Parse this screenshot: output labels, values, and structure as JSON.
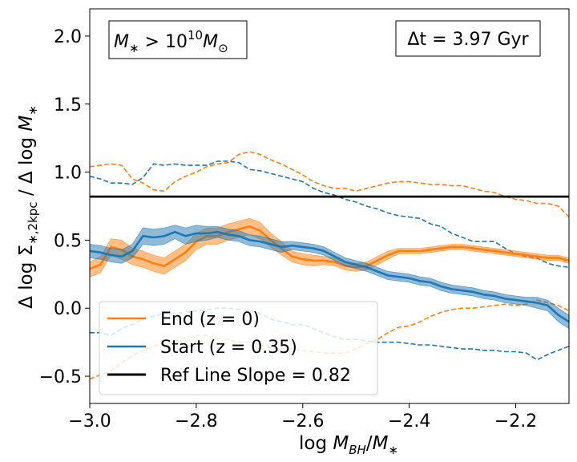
{
  "chart_data": {
    "type": "line",
    "xlabel": "log M_BH/M_*",
    "ylabel": "Δ log Σ_*,2kpc / Δ log M_*",
    "xlim": [
      -3.0,
      -2.1
    ],
    "ylim": [
      -0.7,
      2.2
    ],
    "xticks": [
      -3.0,
      -2.8,
      -2.6,
      -2.4,
      -2.2
    ],
    "xtick_labels": [
      "−3.0",
      "−2.8",
      "−2.6",
      "−2.4",
      "−2.2"
    ],
    "yticks": [
      -0.5,
      0.0,
      0.5,
      1.0,
      1.5,
      2.0
    ],
    "ytick_labels": [
      "−0.5",
      "0.0",
      "0.5",
      "1.0",
      "1.5",
      "2.0"
    ],
    "annotations": {
      "mass_cut": {
        "prefix": "M",
        "sub": "∗",
        "mid": " > 10",
        "exp": "10",
        "suffix": "M",
        "suffix_sub": "⊙"
      },
      "delta_t": "Δt = 3.97 Gyr"
    },
    "ref_line": {
      "name": "Ref Line Slope = 0.82",
      "value": 0.82,
      "color": "#000000"
    },
    "series": [
      {
        "name": "End (z = 0)",
        "color": "#ff7f0e",
        "x": [
          -3.0,
          -2.98,
          -2.96,
          -2.94,
          -2.92,
          -2.9,
          -2.88,
          -2.86,
          -2.84,
          -2.82,
          -2.8,
          -2.78,
          -2.76,
          -2.74,
          -2.72,
          -2.7,
          -2.68,
          -2.66,
          -2.64,
          -2.62,
          -2.6,
          -2.58,
          -2.56,
          -2.54,
          -2.52,
          -2.5,
          -2.48,
          -2.46,
          -2.44,
          -2.42,
          -2.4,
          -2.38,
          -2.36,
          -2.34,
          -2.32,
          -2.3,
          -2.28,
          -2.26,
          -2.24,
          -2.22,
          -2.2,
          -2.18,
          -2.16,
          -2.14,
          -2.12,
          -2.1
        ],
        "median": [
          0.29,
          0.32,
          0.45,
          0.43,
          0.38,
          0.36,
          0.33,
          0.31,
          0.36,
          0.41,
          0.49,
          0.53,
          0.53,
          0.56,
          0.58,
          0.6,
          0.57,
          0.5,
          0.44,
          0.38,
          0.36,
          0.35,
          0.35,
          0.34,
          0.31,
          0.3,
          0.31,
          0.35,
          0.39,
          0.42,
          0.42,
          0.42,
          0.43,
          0.44,
          0.45,
          0.45,
          0.44,
          0.43,
          0.42,
          0.41,
          0.4,
          0.39,
          0.38,
          0.37,
          0.37,
          0.35
        ],
        "upper": [
          0.34,
          0.38,
          0.51,
          0.5,
          0.44,
          0.42,
          0.39,
          0.37,
          0.42,
          0.47,
          0.55,
          0.59,
          0.59,
          0.62,
          0.64,
          0.66,
          0.63,
          0.55,
          0.49,
          0.42,
          0.4,
          0.39,
          0.38,
          0.37,
          0.34,
          0.33,
          0.34,
          0.38,
          0.42,
          0.44,
          0.44,
          0.44,
          0.45,
          0.46,
          0.47,
          0.47,
          0.46,
          0.45,
          0.44,
          0.43,
          0.42,
          0.41,
          0.4,
          0.39,
          0.39,
          0.37
        ],
        "lower": [
          0.23,
          0.26,
          0.39,
          0.36,
          0.32,
          0.3,
          0.27,
          0.25,
          0.3,
          0.35,
          0.43,
          0.47,
          0.47,
          0.5,
          0.52,
          0.54,
          0.51,
          0.45,
          0.39,
          0.34,
          0.32,
          0.31,
          0.32,
          0.31,
          0.28,
          0.27,
          0.28,
          0.32,
          0.36,
          0.4,
          0.4,
          0.4,
          0.41,
          0.42,
          0.43,
          0.43,
          0.42,
          0.41,
          0.4,
          0.39,
          0.38,
          0.37,
          0.36,
          0.35,
          0.35,
          0.33
        ],
        "dashed_upper": [
          1.04,
          1.05,
          1.06,
          1.05,
          0.95,
          0.92,
          0.87,
          0.86,
          0.93,
          0.97,
          1.0,
          1.04,
          1.06,
          1.07,
          1.13,
          1.15,
          1.13,
          1.09,
          1.06,
          1.02,
          0.98,
          0.93,
          0.9,
          0.88,
          0.88,
          0.86,
          0.88,
          0.9,
          0.92,
          0.93,
          0.93,
          0.92,
          0.91,
          0.91,
          0.9,
          0.9,
          0.88,
          0.86,
          0.85,
          0.82,
          0.8,
          0.79,
          0.77,
          0.77,
          0.75,
          0.67
        ],
        "dashed_lower": [
          -0.52,
          -0.49,
          -0.46,
          -0.4,
          -0.35,
          -0.31,
          -0.28,
          -0.26,
          -0.24,
          -0.22,
          -0.2,
          -0.2,
          -0.22,
          -0.23,
          -0.25,
          -0.25,
          -0.27,
          -0.29,
          -0.3,
          -0.3,
          -0.31,
          -0.32,
          -0.33,
          -0.33,
          -0.33,
          -0.3,
          -0.26,
          -0.23,
          -0.18,
          -0.14,
          -0.13,
          -0.1,
          -0.06,
          -0.03,
          -0.01,
          0.0,
          0.0,
          0.01,
          0.02,
          0.03,
          0.02,
          0.03,
          0.06,
          0.04,
          0.02,
          -0.02
        ]
      },
      {
        "name": "Start (z = 0.35)",
        "color": "#1f77b4",
        "x": [
          -3.0,
          -2.98,
          -2.96,
          -2.94,
          -2.92,
          -2.9,
          -2.88,
          -2.86,
          -2.84,
          -2.82,
          -2.8,
          -2.78,
          -2.76,
          -2.74,
          -2.72,
          -2.7,
          -2.68,
          -2.66,
          -2.64,
          -2.62,
          -2.6,
          -2.58,
          -2.56,
          -2.54,
          -2.52,
          -2.5,
          -2.48,
          -2.46,
          -2.44,
          -2.42,
          -2.4,
          -2.38,
          -2.36,
          -2.34,
          -2.32,
          -2.3,
          -2.28,
          -2.26,
          -2.24,
          -2.22,
          -2.2,
          -2.18,
          -2.16,
          -2.14,
          -2.12,
          -2.1
        ],
        "median": [
          0.42,
          0.41,
          0.39,
          0.38,
          0.42,
          0.53,
          0.52,
          0.53,
          0.56,
          0.53,
          0.55,
          0.55,
          0.56,
          0.54,
          0.53,
          0.5,
          0.49,
          0.47,
          0.45,
          0.46,
          0.45,
          0.44,
          0.42,
          0.38,
          0.34,
          0.32,
          0.3,
          0.27,
          0.24,
          0.23,
          0.22,
          0.2,
          0.19,
          0.16,
          0.14,
          0.13,
          0.12,
          0.1,
          0.09,
          0.07,
          0.06,
          0.05,
          0.04,
          0.02,
          -0.05,
          -0.1
        ],
        "upper": [
          0.47,
          0.46,
          0.44,
          0.43,
          0.47,
          0.59,
          0.58,
          0.59,
          0.61,
          0.59,
          0.61,
          0.6,
          0.6,
          0.58,
          0.57,
          0.54,
          0.53,
          0.51,
          0.49,
          0.49,
          0.48,
          0.47,
          0.45,
          0.41,
          0.37,
          0.35,
          0.33,
          0.3,
          0.27,
          0.26,
          0.25,
          0.23,
          0.22,
          0.19,
          0.17,
          0.16,
          0.15,
          0.13,
          0.12,
          0.1,
          0.09,
          0.08,
          0.08,
          0.06,
          0.0,
          -0.05
        ],
        "lower": [
          0.37,
          0.36,
          0.34,
          0.33,
          0.37,
          0.47,
          0.46,
          0.47,
          0.51,
          0.47,
          0.49,
          0.5,
          0.52,
          0.5,
          0.49,
          0.46,
          0.45,
          0.43,
          0.41,
          0.43,
          0.42,
          0.41,
          0.39,
          0.35,
          0.31,
          0.29,
          0.27,
          0.24,
          0.21,
          0.2,
          0.19,
          0.17,
          0.16,
          0.13,
          0.11,
          0.1,
          0.09,
          0.07,
          0.06,
          0.04,
          0.03,
          0.02,
          0.0,
          -0.02,
          -0.1,
          -0.15
        ],
        "dashed_upper": [
          0.97,
          0.95,
          0.92,
          0.92,
          0.91,
          0.96,
          1.06,
          1.05,
          1.06,
          1.05,
          1.05,
          1.05,
          1.08,
          1.08,
          1.07,
          1.02,
          1.01,
          0.99,
          0.97,
          0.95,
          0.93,
          0.88,
          0.85,
          0.83,
          0.8,
          0.78,
          0.75,
          0.73,
          0.7,
          0.68,
          0.67,
          0.66,
          0.62,
          0.6,
          0.55,
          0.52,
          0.49,
          0.49,
          0.49,
          0.44,
          0.4,
          0.38,
          0.37,
          0.33,
          0.31,
          0.3
        ],
        "dashed_lower": [
          -0.18,
          -0.18,
          -0.2,
          -0.15,
          -0.12,
          -0.08,
          -0.06,
          -0.04,
          -0.04,
          -0.03,
          -0.02,
          -0.01,
          0.0,
          0.0,
          -0.01,
          -0.02,
          -0.04,
          -0.08,
          -0.1,
          -0.12,
          -0.12,
          -0.15,
          -0.18,
          -0.21,
          -0.23,
          -0.23,
          -0.24,
          -0.25,
          -0.25,
          -0.25,
          -0.26,
          -0.27,
          -0.27,
          -0.28,
          -0.29,
          -0.3,
          -0.3,
          -0.31,
          -0.31,
          -0.32,
          -0.32,
          -0.33,
          -0.38,
          -0.34,
          -0.31,
          -0.28
        ]
      }
    ],
    "legend": {
      "placement": "lower-left",
      "entries": [
        {
          "label": "End (z = 0)",
          "color": "#ff7f0e"
        },
        {
          "label": "Start (z = 0.35)",
          "color": "#1f77b4"
        },
        {
          "label": "Ref Line Slope = 0.82",
          "color": "#000000"
        }
      ]
    }
  }
}
